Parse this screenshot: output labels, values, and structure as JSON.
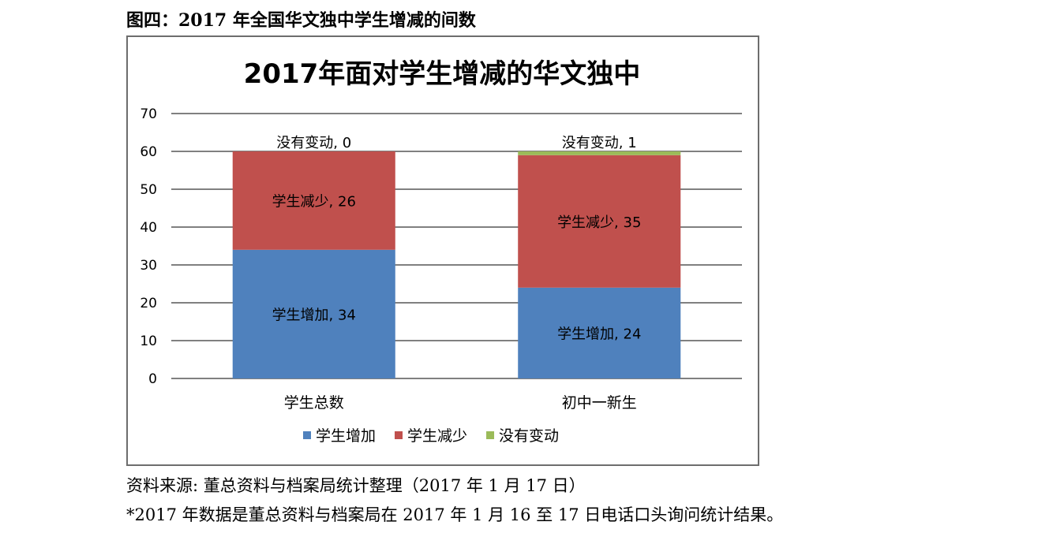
{
  "figure_heading": "图四：2017 年全国华文独中学生增减的间数",
  "source_note": "资料来源: 董总资料与档案局统计整理（2017 年 1 月 17 日）",
  "footnote": "*2017 年数据是董总资料与档案局在 2017 年 1 月 16 至 17 日电话口头询问统计结果。",
  "chart_data": {
    "type": "bar",
    "stacked": true,
    "title": "2017年面对学生增减的华文独中",
    "xlabel": "",
    "ylabel": "",
    "categories": [
      "学生总数",
      "初中一新生"
    ],
    "ylim": [
      0,
      70
    ],
    "yticks": [
      0,
      10,
      20,
      30,
      40,
      50,
      60,
      70
    ],
    "grid": true,
    "legend_position": "bottom",
    "series": [
      {
        "name": "学生增加",
        "values": [
          34,
          24
        ],
        "color": "#4f81bd",
        "data_labels": [
          "学生增加, 34",
          "学生增加, 24"
        ]
      },
      {
        "name": "学生减少",
        "values": [
          26,
          35
        ],
        "color": "#c0504d",
        "data_labels": [
          "学生减少, 26",
          "学生减少, 35"
        ]
      },
      {
        "name": "没有变动",
        "values": [
          0,
          1
        ],
        "color": "#9bbb59",
        "data_labels": [
          "没有变动, 0",
          "没有变动, 1"
        ]
      }
    ]
  }
}
